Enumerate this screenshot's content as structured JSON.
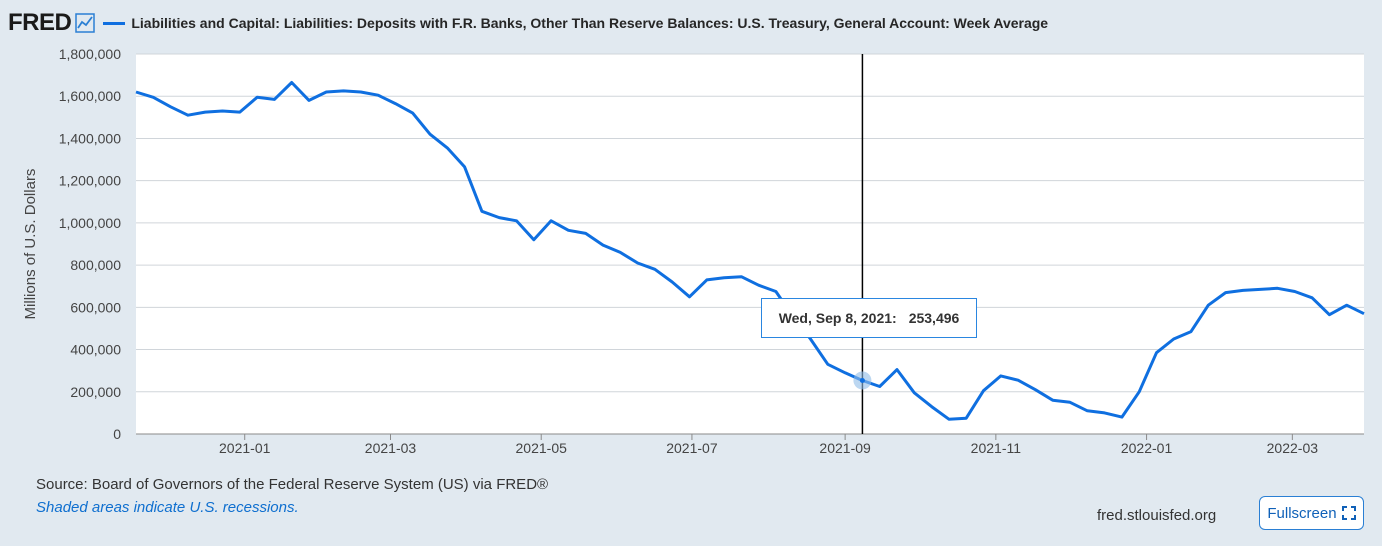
{
  "header": {
    "logo_text": "FRED",
    "logo_icon": "line-chart-icon",
    "series_title": "Liabilities and Capital: Liabilities: Deposits with F.R. Banks, Other Than Reserve Balances: U.S. Treasury, General Account: Week Average"
  },
  "colors": {
    "series_line": "#0f6fe0",
    "background": "#e1e9f0",
    "plot_background": "#ffffff",
    "grid": "#d0d5da",
    "crosshair": "#000000"
  },
  "chart_data": {
    "type": "line",
    "title": "Liabilities and Capital: Liabilities: Deposits with F.R. Banks, Other Than Reserve Balances: U.S. Treasury, General Account: Week Average",
    "ylabel": "Millions of U.S. Dollars",
    "xlabel": "",
    "ylim": [
      0,
      1800000
    ],
    "xlim": [
      "2020-11-18",
      "2022-03-30"
    ],
    "yticks": [
      0,
      200000,
      400000,
      600000,
      800000,
      1000000,
      1200000,
      1400000,
      1600000,
      1800000
    ],
    "ytick_labels": [
      "0",
      "200,000",
      "400,000",
      "600,000",
      "800,000",
      "1,000,000",
      "1,200,000",
      "1,400,000",
      "1,600,000",
      "1,800,000"
    ],
    "xticks": [
      "2021-01-01",
      "2021-03-01",
      "2021-05-01",
      "2021-07-01",
      "2021-09-01",
      "2021-11-01",
      "2022-01-01",
      "2022-03-01"
    ],
    "xtick_labels": [
      "2021-01",
      "2021-03",
      "2021-05",
      "2021-07",
      "2021-09",
      "2021-11",
      "2022-01",
      "2022-03"
    ],
    "grid": true,
    "legend": "top-left",
    "series": [
      {
        "name": "Liabilities and Capital: Liabilities: Deposits with F.R. Banks, Other Than Reserve Balances: U.S. Treasury, General Account: Week Average",
        "x": [
          "2020-11-18",
          "2020-11-25",
          "2020-12-02",
          "2020-12-09",
          "2020-12-16",
          "2020-12-23",
          "2020-12-30",
          "2021-01-06",
          "2021-01-13",
          "2021-01-20",
          "2021-01-27",
          "2021-02-03",
          "2021-02-10",
          "2021-02-17",
          "2021-02-24",
          "2021-03-03",
          "2021-03-10",
          "2021-03-17",
          "2021-03-24",
          "2021-03-31",
          "2021-04-07",
          "2021-04-14",
          "2021-04-21",
          "2021-04-28",
          "2021-05-05",
          "2021-05-12",
          "2021-05-19",
          "2021-05-26",
          "2021-06-02",
          "2021-06-09",
          "2021-06-16",
          "2021-06-23",
          "2021-06-30",
          "2021-07-07",
          "2021-07-14",
          "2021-07-21",
          "2021-07-28",
          "2021-08-04",
          "2021-08-11",
          "2021-08-18",
          "2021-08-25",
          "2021-09-01",
          "2021-09-08",
          "2021-09-15",
          "2021-09-22",
          "2021-09-29",
          "2021-10-06",
          "2021-10-13",
          "2021-10-20",
          "2021-10-27",
          "2021-11-03",
          "2021-11-10",
          "2021-11-17",
          "2021-11-24",
          "2021-12-01",
          "2021-12-08",
          "2021-12-15",
          "2021-12-22",
          "2021-12-29",
          "2022-01-05",
          "2022-01-12",
          "2022-01-19",
          "2022-01-26",
          "2022-02-02",
          "2022-02-09",
          "2022-02-16",
          "2022-02-23",
          "2022-03-02",
          "2022-03-09",
          "2022-03-16",
          "2022-03-23",
          "2022-03-30"
        ],
        "y": [
          1620000,
          1595000,
          1550000,
          1510000,
          1525000,
          1530000,
          1525000,
          1595000,
          1585000,
          1665000,
          1580000,
          1620000,
          1625000,
          1620000,
          1605000,
          1565000,
          1520000,
          1420000,
          1355000,
          1265000,
          1055000,
          1025000,
          1010000,
          920000,
          1010000,
          965000,
          950000,
          895000,
          860000,
          810000,
          780000,
          720000,
          650000,
          730000,
          740000,
          745000,
          705000,
          675000,
          555000,
          450000,
          330000,
          290000,
          253496,
          225000,
          305000,
          195000,
          130000,
          70000,
          75000,
          205000,
          275000,
          255000,
          210000,
          160000,
          150000,
          110000,
          100000,
          80000,
          200000,
          385000,
          450000,
          485000,
          610000,
          670000,
          680000,
          685000,
          690000,
          675000,
          645000,
          565000,
          610000,
          570000
        ]
      }
    ]
  },
  "tooltip": {
    "date": "Wed, Sep 8, 2021:",
    "value": "253,496",
    "x": "2021-09-08"
  },
  "footer": {
    "source": "Source: Board of Governors of the Federal Reserve System (US) via FRED®",
    "recession_note": "Shaded areas indicate U.S. recessions.",
    "url": "fred.stlouisfed.org",
    "fullscreen_label": "Fullscreen",
    "fullscreen_icon": "expand-icon"
  }
}
